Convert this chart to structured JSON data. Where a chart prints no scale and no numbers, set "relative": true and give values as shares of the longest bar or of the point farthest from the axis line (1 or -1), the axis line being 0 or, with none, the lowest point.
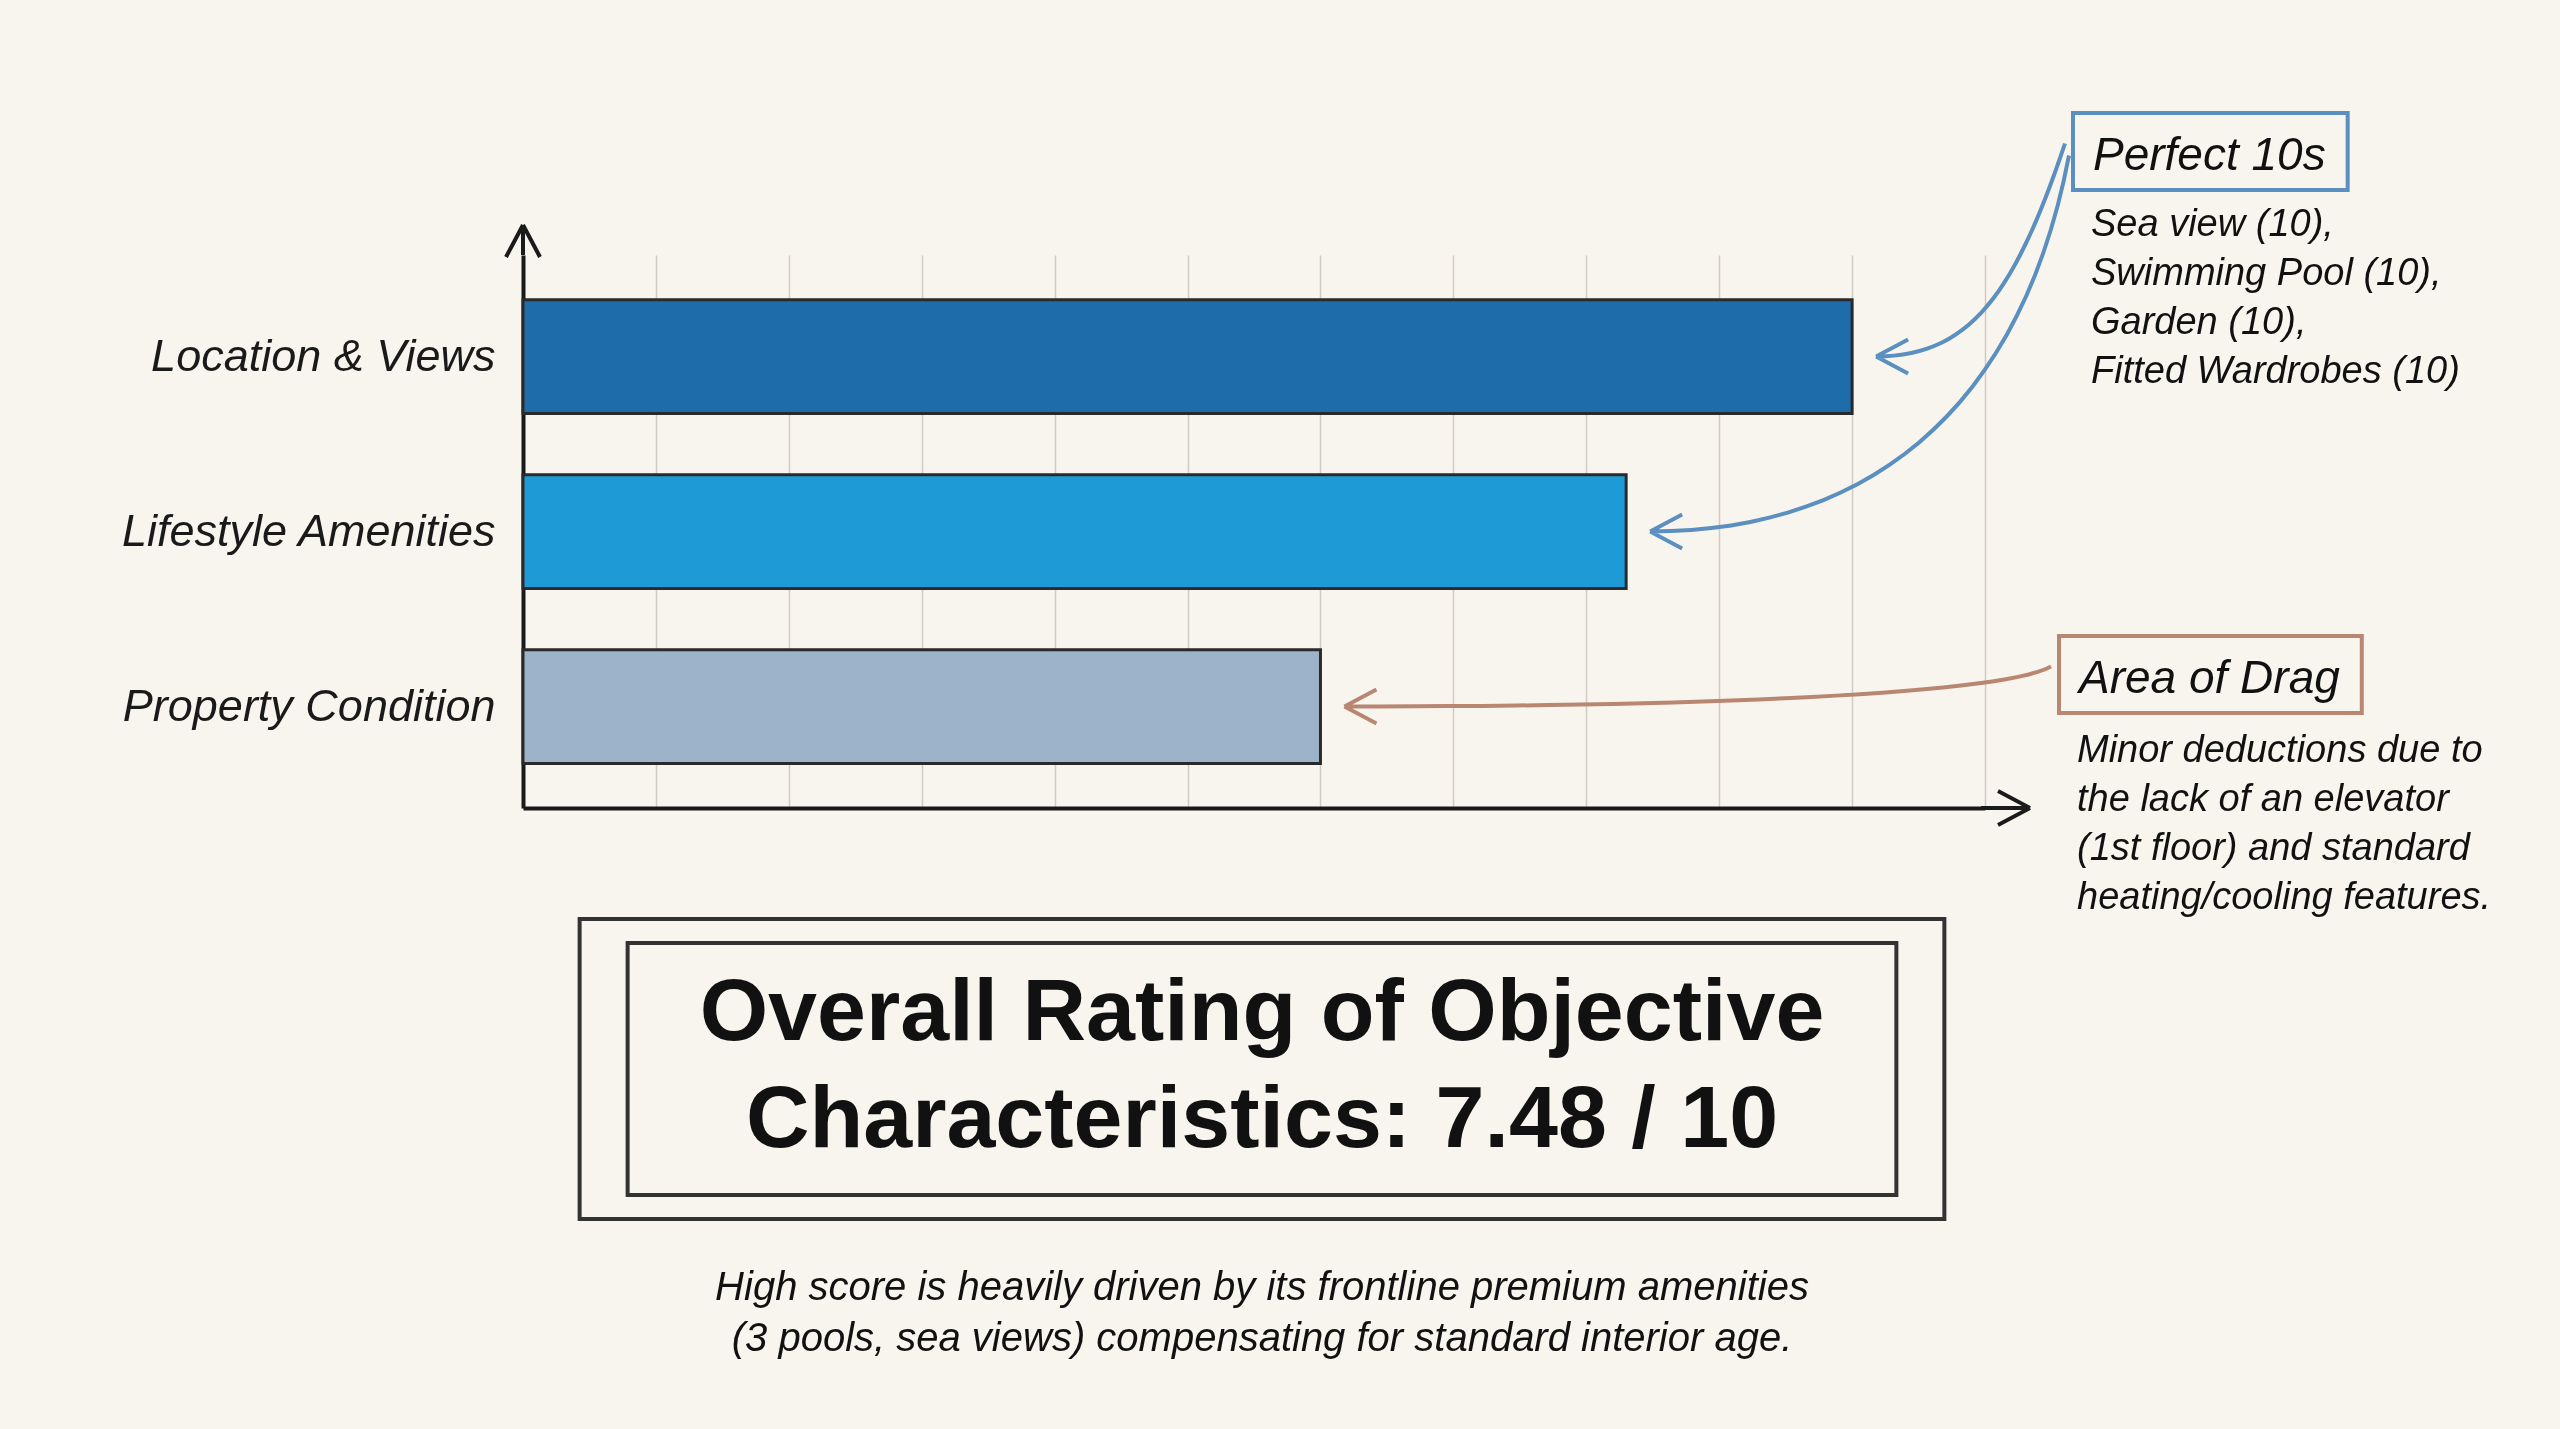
{
  "chart_data": {
    "type": "bar",
    "orientation": "horizontal",
    "relative": true,
    "title": "Overall Rating of Objective Characteristics: 7.48 / 10",
    "subtitle": "High score is heavily driven by its frontline premium amenities (3 pools, sea views) compensating for standard interior age.",
    "categories": [
      "Location & Views",
      "Lifestyle Amenities",
      "Property Condition"
    ],
    "values": [
      1,
      0.83,
      0.6
    ],
    "colors": [
      "#1f6cab",
      "#1e9bd7",
      "#9db3c9"
    ],
    "grid": "x",
    "annotations": [
      "Perfect 10s",
      "Sea view (10), Swimming Pool (10), Garden (10), Fitted Wardrobes (10)",
      "Area of Drag",
      "Minor deductions due to the lack of an elevator (1st floor) and standard heating/cooling features."
    ]
  }
}
